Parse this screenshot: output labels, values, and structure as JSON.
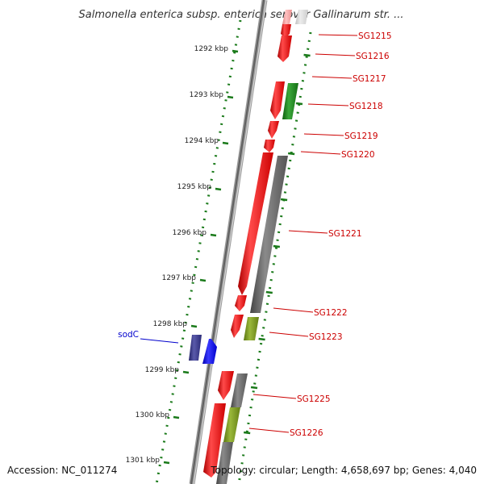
{
  "title": "Salmonella enterica subsp. enterica serovar Gallinarum str. ...",
  "footer": {
    "accession": "Accession: NC_011274",
    "summary": "Topology: circular; Length: 4,658,697 bp; Genes: 4,040"
  },
  "colors": {
    "forward": "#ff0000",
    "reverse": "#606060",
    "green": "#1a8a1a",
    "olive": "#7a9a20",
    "navy": "#333388",
    "blue": "#0000ee",
    "label_red": "#cc0000",
    "label_blue": "#0000cc",
    "tick": "#1a7a1a"
  },
  "kbp_ticks": [
    "1292 kbp",
    "1293 kbp",
    "1294 kbp",
    "1295 kbp",
    "1296 kbp",
    "1297 kbp",
    "1298 kbp",
    "1299 kbp",
    "1300 kbp",
    "1301 kbp"
  ],
  "gene_labels": [
    {
      "name": "SG1215",
      "color": "label_red"
    },
    {
      "name": "SG1216",
      "color": "label_red"
    },
    {
      "name": "SG1217",
      "color": "label_red"
    },
    {
      "name": "SG1218",
      "color": "label_red"
    },
    {
      "name": "SG1219",
      "color": "label_red"
    },
    {
      "name": "SG1220",
      "color": "label_red"
    },
    {
      "name": "SG1221",
      "color": "label_red"
    },
    {
      "name": "SG1222",
      "color": "label_red"
    },
    {
      "name": "SG1223",
      "color": "label_red"
    },
    {
      "name": "SG1225",
      "color": "label_red"
    },
    {
      "name": "SG1226",
      "color": "label_red"
    },
    {
      "name": "sodC",
      "color": "label_blue"
    }
  ]
}
